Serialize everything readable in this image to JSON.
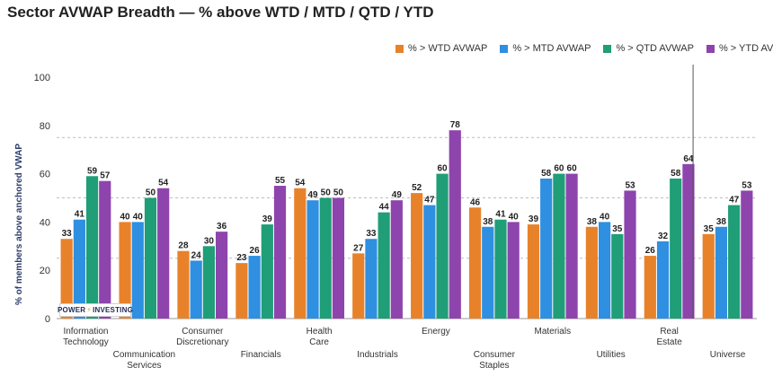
{
  "chart_data": {
    "type": "bar",
    "title": "Sector AVWAP Breadth — % above WTD / MTD / QTD / YTD",
    "ylabel": "% of members above anchored VWAP",
    "xlabel": "",
    "ylim": [
      0,
      100
    ],
    "yticks": [
      0,
      20,
      40,
      60,
      80,
      100
    ],
    "grid": "dashed horizontal at 25, 50, 75",
    "legend_position": "top-right",
    "categories": [
      [
        "Information",
        "Technology"
      ],
      [
        "Communication",
        "Services"
      ],
      [
        "Consumer",
        "Discretionary"
      ],
      [
        "Financials"
      ],
      [
        "Health",
        "Care"
      ],
      [
        "Industrials"
      ],
      [
        "Energy"
      ],
      [
        "Consumer",
        "Staples"
      ],
      [
        "Materials"
      ],
      [
        "Utilities"
      ],
      [
        "Real",
        "Estate"
      ],
      [
        "Universe"
      ]
    ],
    "series": [
      {
        "name": "% > WTD AVWAP",
        "color": "#e8822a",
        "values": [
          33,
          40,
          28,
          23,
          54,
          27,
          52,
          46,
          39,
          38,
          26,
          35
        ]
      },
      {
        "name": "% > MTD AVWAP",
        "color": "#2f8fe0",
        "values": [
          41,
          40,
          24,
          26,
          49,
          33,
          47,
          38,
          58,
          40,
          32,
          38
        ]
      },
      {
        "name": "% > QTD AVWAP",
        "color": "#1f9e77",
        "values": [
          59,
          50,
          30,
          39,
          50,
          44,
          60,
          41,
          60,
          35,
          58,
          47
        ]
      },
      {
        "name": "% > YTD AVWAP",
        "color": "#8e44ad",
        "values": [
          57,
          54,
          36,
          55,
          50,
          49,
          78,
          40,
          60,
          53,
          64,
          53
        ]
      }
    ]
  },
  "logo": {
    "text_left": "POWER",
    "text_right": "INVESTING"
  }
}
